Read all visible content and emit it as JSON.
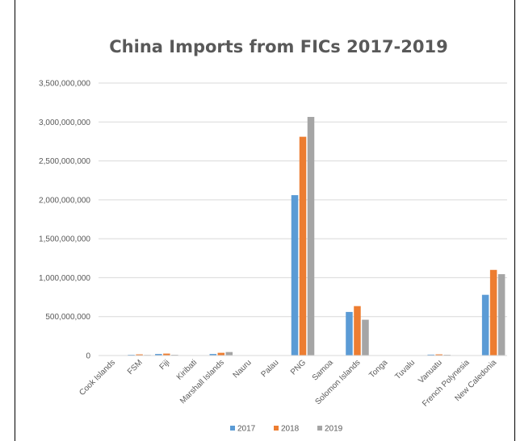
{
  "chart_data": {
    "type": "bar",
    "title": "China Imports from FICs 2017-2019",
    "xlabel": "",
    "ylabel": "",
    "ylim": [
      0,
      3500000000
    ],
    "yticks": [
      0,
      500000000,
      1000000000,
      1500000000,
      2000000000,
      2500000000,
      3000000000,
      3500000000
    ],
    "ytick_labels": [
      "0",
      "500,000,000",
      "1,000,000,000",
      "1,500,000,000",
      "2,000,000,000",
      "2,500,000,000",
      "3,000,000,000",
      "3,500,000,000"
    ],
    "grid": true,
    "legend_position": "bottom",
    "categories": [
      "Cook Islands",
      "FSM",
      "Fiji",
      "Kiribati",
      "Marshall Islands",
      "Nauru",
      "Palau",
      "PNG",
      "Samoa",
      "Solomon Islands",
      "Tonga",
      "Tuvalu",
      "Vanuatu",
      "French Polynesia",
      "New Caledonia"
    ],
    "series": [
      {
        "name": "2017",
        "color": "#5B9BD5",
        "values": [
          0,
          10000000,
          20000000,
          5000000,
          20000000,
          0,
          0,
          2060000000,
          0,
          560000000,
          0,
          0,
          12000000,
          0,
          780000000
        ]
      },
      {
        "name": "2018",
        "color": "#ED7D31",
        "values": [
          0,
          15000000,
          25000000,
          3000000,
          35000000,
          0,
          0,
          2810000000,
          0,
          635000000,
          0,
          0,
          15000000,
          0,
          1100000000
        ]
      },
      {
        "name": "2019",
        "color": "#A5A5A5",
        "values": [
          0,
          8000000,
          10000000,
          2000000,
          45000000,
          0,
          0,
          3065000000,
          0,
          460000000,
          0,
          0,
          10000000,
          0,
          1045000000
        ]
      }
    ]
  }
}
